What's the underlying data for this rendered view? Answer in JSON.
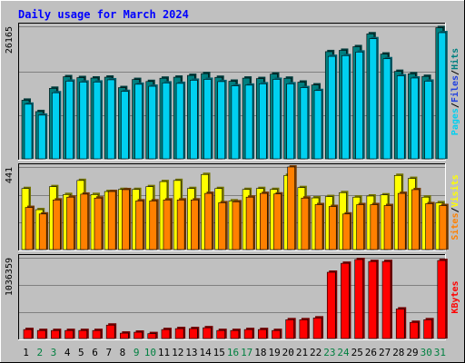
{
  "chart_data": [
    {
      "type": "bar",
      "title": "Daily usage for March 2024",
      "categories": [
        "1",
        "2",
        "3",
        "4",
        "5",
        "6",
        "7",
        "8",
        "9",
        "10",
        "11",
        "12",
        "13",
        "14",
        "15",
        "16",
        "17",
        "18",
        "19",
        "20",
        "21",
        "22",
        "23",
        "24",
        "25",
        "26",
        "27",
        "28",
        "29",
        "30",
        "31"
      ],
      "weekend_days": [
        "2",
        "3",
        "9",
        "10",
        "16",
        "17",
        "23",
        "24",
        "30",
        "31"
      ],
      "ylim": [
        0,
        26165
      ],
      "max_label": "26165",
      "grid": true,
      "legend_placement": "right",
      "series": [
        {
          "name": "Hits",
          "color": "#008080",
          "values": [
            11575,
            9327,
            13925,
            16215,
            16040,
            15953,
            16126,
            14059,
            15669,
            15272,
            15916,
            16118,
            16471,
            16824,
            16089,
            15320,
            15938,
            15848,
            16736,
            15914,
            15142,
            14594,
            21162,
            21424,
            22144,
            24682,
            20690,
            17270,
            16794,
            16275,
            25899
          ]
        },
        {
          "name": "Files",
          "color": "#2040e0",
          "values": [
            11575,
            9327,
            13925,
            16215,
            16040,
            15953,
            16126,
            14059,
            15669,
            15272,
            15916,
            16118,
            16471,
            16824,
            16089,
            15320,
            15938,
            15848,
            16736,
            15914,
            15142,
            14594,
            21162,
            21424,
            22144,
            24682,
            20690,
            17270,
            16794,
            16275,
            25899
          ]
        },
        {
          "name": "Pages",
          "color": "#00d0f0",
          "values": [
            10784,
            8625,
            13045,
            15336,
            15161,
            15161,
            15600,
            13307,
            14721,
            14326,
            14986,
            14897,
            15512,
            15688,
            15248,
            14412,
            14545,
            14809,
            15688,
            14809,
            14061,
            13485,
            20231,
            20377,
            21081,
            23713,
            19760,
            16394,
            15952,
            15336,
            24908
          ]
        }
      ]
    },
    {
      "type": "bar",
      "categories": [
        "1",
        "2",
        "3",
        "4",
        "5",
        "6",
        "7",
        "8",
        "9",
        "10",
        "11",
        "12",
        "13",
        "14",
        "15",
        "16",
        "17",
        "18",
        "19",
        "20",
        "21",
        "22",
        "23",
        "24",
        "25",
        "26",
        "27",
        "28",
        "29",
        "30",
        "31"
      ],
      "ylim": [
        0,
        441
      ],
      "max_label": "441",
      "grid": true,
      "legend_placement": "right",
      "series": [
        {
          "name": "Visits",
          "color": "#ffff00",
          "values": [
            326,
            213,
            336,
            294,
            369,
            294,
            310,
            321,
            321,
            336,
            363,
            369,
            326,
            401,
            326,
            260,
            321,
            326,
            321,
            396,
            331,
            276,
            283,
            304,
            280,
            286,
            292,
            396,
            380,
            280,
            250
          ]
        },
        {
          "name": "Sites",
          "color": "#ff8000",
          "values": [
            225,
            190,
            265,
            280,
            296,
            275,
            310,
            320,
            260,
            260,
            265,
            265,
            265,
            300,
            250,
            255,
            280,
            300,
            297,
            441,
            275,
            240,
            230,
            190,
            240,
            240,
            235,
            300,
            320,
            245,
            235
          ]
        }
      ]
    },
    {
      "type": "bar",
      "categories": [
        "1",
        "2",
        "3",
        "4",
        "5",
        "6",
        "7",
        "8",
        "9",
        "10",
        "11",
        "12",
        "13",
        "14",
        "15",
        "16",
        "17",
        "18",
        "19",
        "20",
        "21",
        "22",
        "23",
        "24",
        "25",
        "26",
        "27",
        "28",
        "29",
        "30",
        "31"
      ],
      "ylim": [
        0,
        1036359
      ],
      "max_label": "1036359",
      "grid": true,
      "legend_placement": "right",
      "series": [
        {
          "name": "KBytes",
          "color": "#ff0000",
          "values": [
            115000,
            103000,
            103000,
            103000,
            103000,
            103000,
            172000,
            69000,
            81000,
            63000,
            115000,
            127000,
            127000,
            138000,
            103000,
            103000,
            115000,
            115000,
            103000,
            241000,
            241000,
            264000,
            850000,
            965000,
            1013000,
            988000,
            988000,
            379000,
            207000,
            241000,
            1001000
          ]
        }
      ]
    }
  ]
}
